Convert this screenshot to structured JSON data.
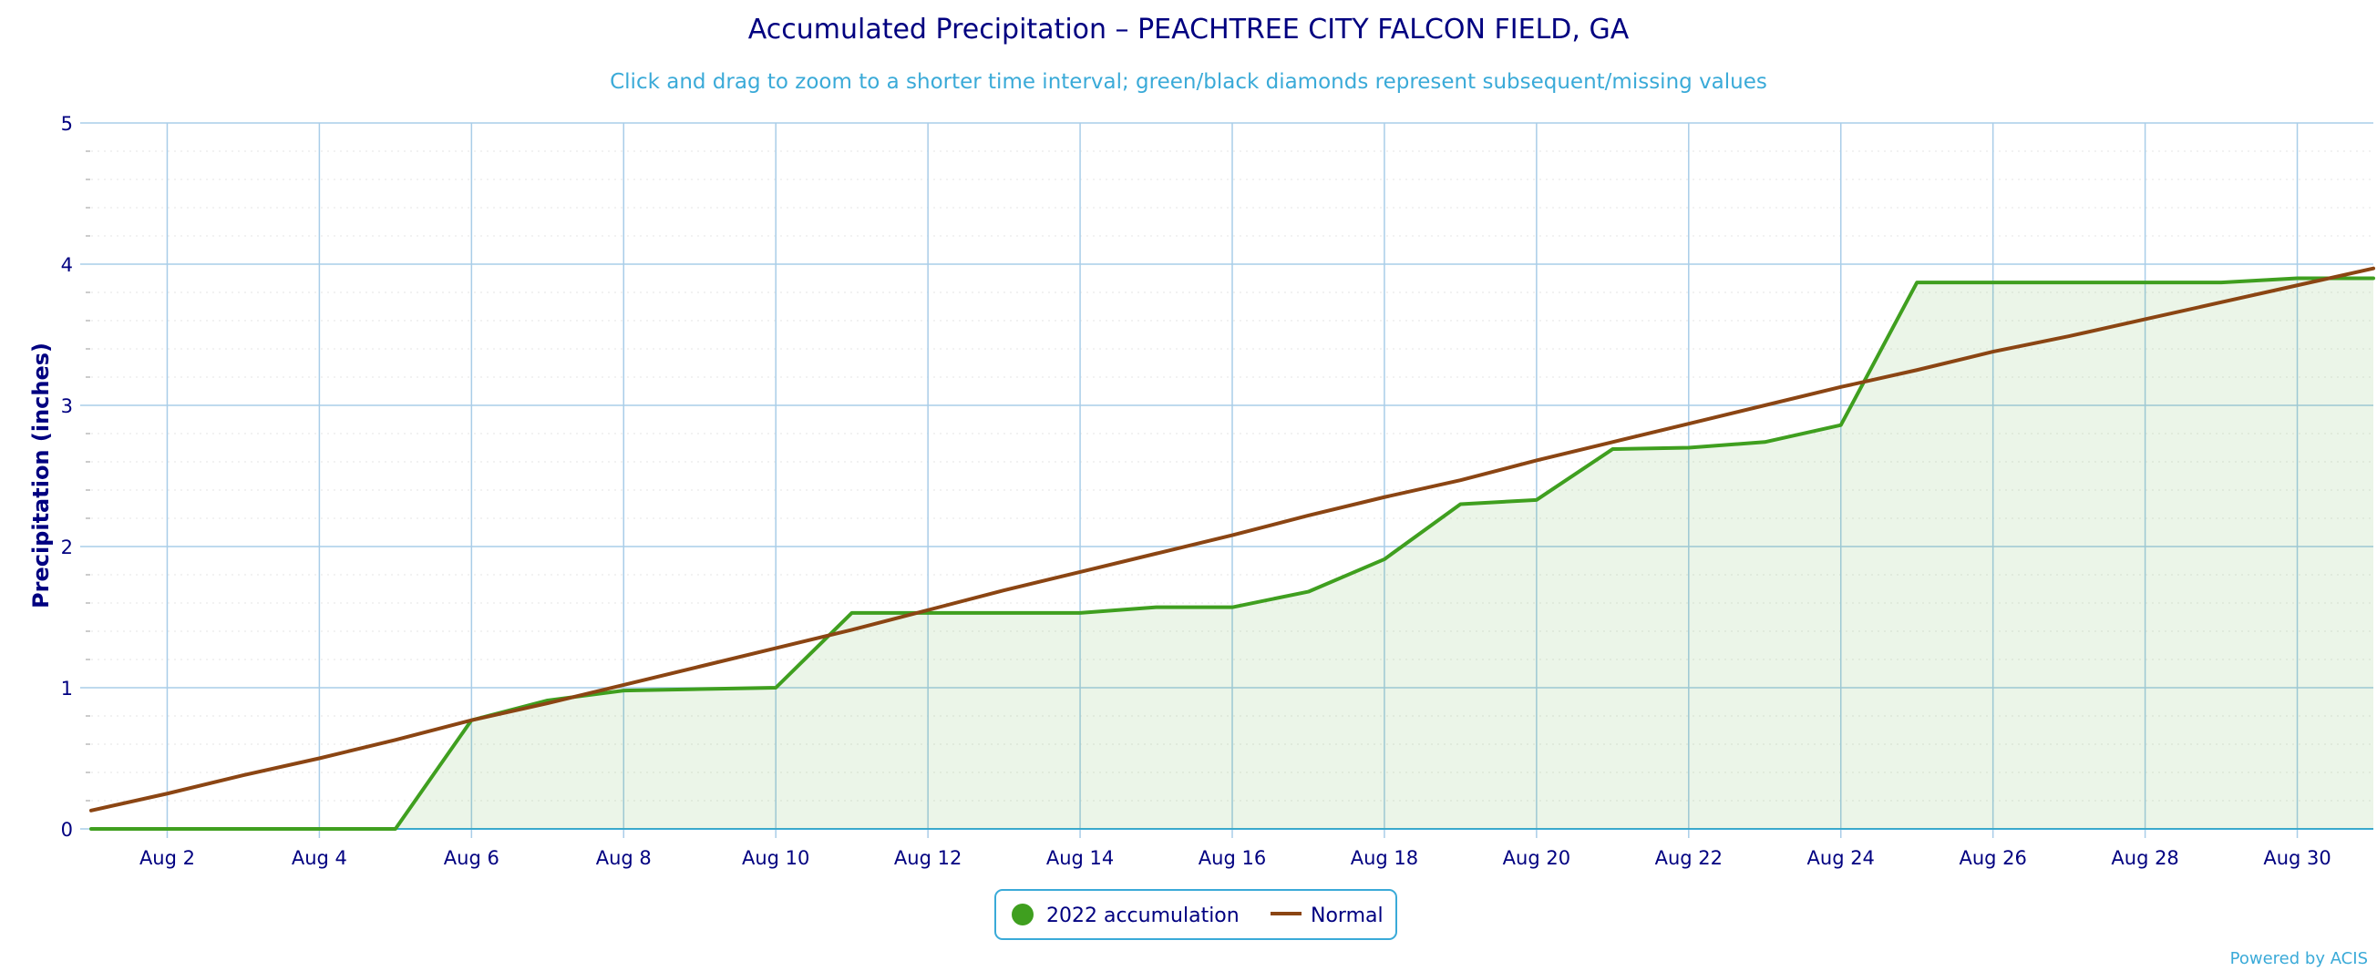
{
  "chart_data": {
    "type": "line",
    "title": "Accumulated Precipitation – PEACHTREE CITY FALCON FIELD, GA",
    "subtitle": "Click and drag to zoom to a shorter time interval; green/black diamonds represent subsequent/missing values",
    "ylabel": "Precipitation (inches)",
    "xlabel": "",
    "ylim": [
      0,
      5
    ],
    "xlim": [
      "2022-08-01",
      "2022-08-31"
    ],
    "y_ticks": [
      "0",
      "1",
      "2",
      "3",
      "4",
      "5"
    ],
    "x_ticks": [
      "Aug 2",
      "Aug 4",
      "Aug 6",
      "Aug 8",
      "Aug 10",
      "Aug 12",
      "Aug 14",
      "Aug 16",
      "Aug 18",
      "Aug 20",
      "Aug 22",
      "Aug 24",
      "Aug 26",
      "Aug 28",
      "Aug 30"
    ],
    "x_tick_dates": [
      "2022-08-02",
      "2022-08-04",
      "2022-08-06",
      "2022-08-08",
      "2022-08-10",
      "2022-08-12",
      "2022-08-14",
      "2022-08-16",
      "2022-08-18",
      "2022-08-20",
      "2022-08-22",
      "2022-08-24",
      "2022-08-26",
      "2022-08-28",
      "2022-08-30"
    ],
    "grid": true,
    "legend_position": "bottom-center",
    "series": [
      {
        "name": "2022 accumulation",
        "color": "#3f9f1f",
        "fill": "area",
        "x": [
          "2022-08-01",
          "2022-08-02",
          "2022-08-03",
          "2022-08-04",
          "2022-08-05",
          "2022-08-06",
          "2022-08-07",
          "2022-08-08",
          "2022-08-09",
          "2022-08-10",
          "2022-08-11",
          "2022-08-12",
          "2022-08-13",
          "2022-08-14",
          "2022-08-15",
          "2022-08-16",
          "2022-08-17",
          "2022-08-18",
          "2022-08-19",
          "2022-08-20",
          "2022-08-21",
          "2022-08-22",
          "2022-08-23",
          "2022-08-24",
          "2022-08-25",
          "2022-08-26",
          "2022-08-27",
          "2022-08-28",
          "2022-08-29",
          "2022-08-30",
          "2022-08-31"
        ],
        "values": [
          0,
          0,
          0,
          0,
          0,
          0.77,
          0.91,
          0.98,
          0.99,
          1.0,
          1.53,
          1.53,
          1.53,
          1.53,
          1.57,
          1.57,
          1.68,
          1.91,
          2.3,
          2.33,
          2.69,
          2.7,
          2.74,
          2.86,
          3.87,
          3.87,
          3.87,
          3.87,
          3.87,
          3.9,
          3.9
        ]
      },
      {
        "name": "Normal",
        "color": "#8b4513",
        "fill": "none",
        "x": [
          "2022-08-01",
          "2022-08-02",
          "2022-08-03",
          "2022-08-04",
          "2022-08-05",
          "2022-08-06",
          "2022-08-07",
          "2022-08-08",
          "2022-08-09",
          "2022-08-10",
          "2022-08-11",
          "2022-08-12",
          "2022-08-13",
          "2022-08-14",
          "2022-08-15",
          "2022-08-16",
          "2022-08-17",
          "2022-08-18",
          "2022-08-19",
          "2022-08-20",
          "2022-08-21",
          "2022-08-22",
          "2022-08-23",
          "2022-08-24",
          "2022-08-25",
          "2022-08-26",
          "2022-08-27",
          "2022-08-28",
          "2022-08-29",
          "2022-08-30",
          "2022-08-31"
        ],
        "values": [
          0.13,
          0.25,
          0.38,
          0.5,
          0.63,
          0.77,
          0.89,
          1.02,
          1.15,
          1.28,
          1.41,
          1.55,
          1.69,
          1.82,
          1.95,
          2.08,
          2.22,
          2.35,
          2.47,
          2.61,
          2.74,
          2.87,
          3.0,
          3.13,
          3.25,
          3.38,
          3.49,
          3.61,
          3.73,
          3.85,
          3.97
        ]
      }
    ]
  },
  "legend": {
    "marker_icon": "circle-marker-icon",
    "line_icon": "line-marker-icon"
  },
  "credits": {
    "text": "Powered by ACIS"
  }
}
